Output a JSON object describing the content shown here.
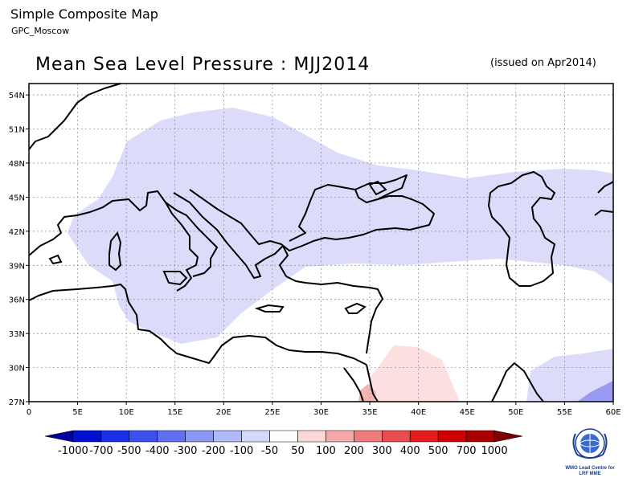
{
  "header": {
    "title": "Simple Composite Map",
    "subtitle": "GPC_Moscow"
  },
  "map": {
    "title": "Mean Sea Level Pressure : MJJ2014",
    "issued": "(issued on Apr2014)",
    "lon_range": [
      0,
      60
    ],
    "lat_range": [
      27,
      55
    ],
    "lat_ticks": [
      "27N",
      "30N",
      "33N",
      "36N",
      "39N",
      "42N",
      "45N",
      "48N",
      "51N",
      "54N"
    ],
    "lon_ticks": [
      "0",
      "5E",
      "10E",
      "15E",
      "20E",
      "25E",
      "30E",
      "35E",
      "40E",
      "45E",
      "50E",
      "55E",
      "60E"
    ],
    "grid": true,
    "colors": {
      "neg_light": "#dcdcfa",
      "neg_mid": "#9a9af0",
      "pos_light": "#fce0e0",
      "pos_mid": "#f4b4b4",
      "coast": "#000000",
      "grid": "#888888"
    }
  },
  "legend": {
    "labels": [
      "-1000",
      "-700",
      "-500",
      "-400",
      "-300",
      "-200",
      "-100",
      "-50",
      "50",
      "100",
      "200",
      "300",
      "400",
      "500",
      "700",
      "1000"
    ],
    "colors": [
      "#0000a0",
      "#0010d0",
      "#1a30e8",
      "#3c50ee",
      "#6070f0",
      "#8a98f4",
      "#b0baf6",
      "#d4d8fa",
      "#ffffff",
      "#fcd8d8",
      "#f4aaaa",
      "#ee7c7c",
      "#e84c4c",
      "#e81c1c",
      "#d00000",
      "#a80000",
      "#800000"
    ]
  },
  "logo": {
    "line1": "WMO Lead Centre for",
    "line2": "LRF MME"
  }
}
